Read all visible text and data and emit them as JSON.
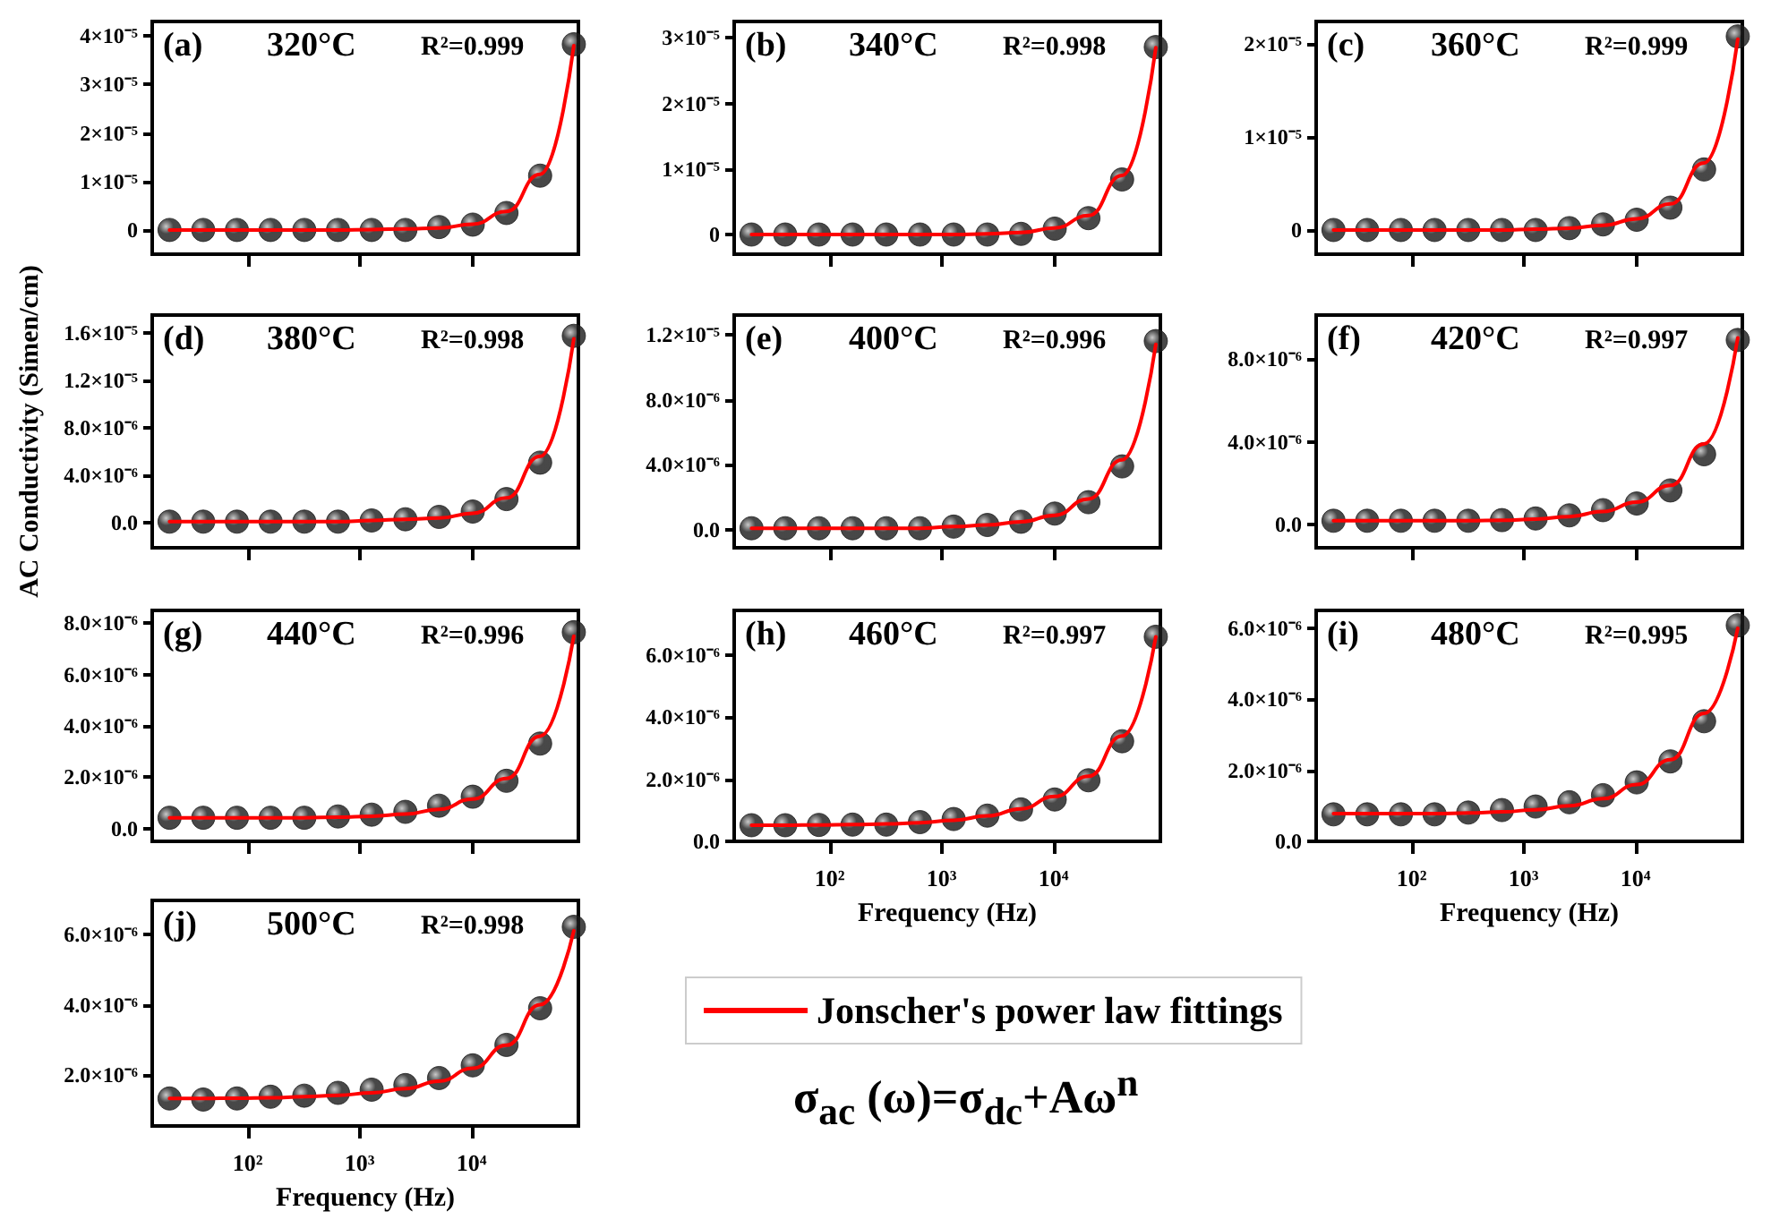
{
  "chart_data": [
    {
      "type": "scatter",
      "annotations": [
        "(a)",
        "320°C",
        "R²=0.999"
      ],
      "x": [
        20,
        40,
        80,
        160,
        320,
        640,
        1280,
        2560,
        5120,
        10240,
        20480,
        40960,
        81920
      ],
      "log": "x",
      "xlim": [
        14,
        90000
      ],
      "xticks": [
        {
          "value": 100,
          "label": null
        },
        {
          "value": 1000,
          "label": null
        },
        {
          "value": 10000,
          "label": null
        }
      ],
      "ylim": [
        -5e-06,
        4.3e-05
      ],
      "yticks": [
        {
          "value": 0,
          "label": "0"
        },
        {
          "value": 1e-05,
          "label": "1×10⁻⁵"
        },
        {
          "value": 2e-05,
          "label": "2×10⁻⁵"
        },
        {
          "value": 3e-05,
          "label": "3×10⁻⁵"
        },
        {
          "value": 4e-05,
          "label": "4×10⁻⁵"
        }
      ],
      "tick_labels": "y",
      "marker": "circle",
      "series": [
        {
          "color": "#1a1a1a",
          "values": [
            0,
            0,
            0,
            0,
            0,
            0,
            0,
            0,
            6e-07,
            1.1e-06,
            3.5e-06,
            1.12e-05,
            3.83e-05
          ]
        },
        {
          "type": "line",
          "marker": "none",
          "color": "#ff0000",
          "values": [
            0,
            0,
            0,
            0,
            0,
            0,
            1e-07,
            2e-07,
            4e-07,
            1.2e-06,
            3.8e-06,
            1.15e-05,
            3.8e-05
          ]
        }
      ]
    },
    {
      "type": "scatter",
      "annotations": [
        "(b)",
        "340°C",
        "R²=0.998"
      ],
      "x": [
        20,
        40,
        80,
        160,
        320,
        640,
        1280,
        2560,
        5120,
        10240,
        20480,
        40960,
        81920
      ],
      "log": "x",
      "xlim": [
        14,
        90000
      ],
      "xticks": [
        {
          "value": 100,
          "label": null
        },
        {
          "value": 1000,
          "label": null
        },
        {
          "value": 10000,
          "label": null
        }
      ],
      "ylim": [
        -3e-06,
        3.25e-05
      ],
      "yticks": [
        {
          "value": 0,
          "label": "0"
        },
        {
          "value": 1e-05,
          "label": "1×10⁻⁵"
        },
        {
          "value": 2e-05,
          "label": "2×10⁻⁵"
        },
        {
          "value": 3e-05,
          "label": "3×10⁻⁵"
        }
      ],
      "tick_labels": "y",
      "marker": "circle",
      "series": [
        {
          "color": "#1a1a1a",
          "values": [
            0,
            0,
            0,
            0,
            0,
            0,
            0,
            0,
            1e-07,
            9e-07,
            2.5e-06,
            8.4e-06,
            2.86e-05
          ]
        },
        {
          "type": "line",
          "marker": "none",
          "color": "#ff0000",
          "values": [
            0,
            0,
            0,
            0,
            0,
            0,
            0,
            1e-07,
            3e-07,
            1e-06,
            2.9e-06,
            9e-06,
            2.85e-05
          ]
        }
      ]
    },
    {
      "type": "scatter",
      "annotations": [
        "(c)",
        "360°C",
        "R²=0.999"
      ],
      "x": [
        20,
        40,
        80,
        160,
        320,
        640,
        1280,
        2560,
        5120,
        10240,
        20480,
        40960,
        81920
      ],
      "log": "x",
      "xlim": [
        14,
        90000
      ],
      "xticks": [
        {
          "value": 100,
          "label": null
        },
        {
          "value": 1000,
          "label": null
        },
        {
          "value": 10000,
          "label": null
        }
      ],
      "ylim": [
        -2.6e-06,
        2.24e-05
      ],
      "yticks": [
        {
          "value": 0,
          "label": "0"
        },
        {
          "value": 1e-05,
          "label": "1×10⁻⁵"
        },
        {
          "value": 2e-05,
          "label": "2×10⁻⁵"
        }
      ],
      "tick_labels": "y",
      "marker": "circle",
      "series": [
        {
          "color": "#1a1a1a",
          "values": [
            0,
            0,
            0,
            0,
            0,
            0,
            0,
            2e-07,
            6e-07,
            1.1e-06,
            2.4e-06,
            6.5e-06,
            2.08e-05
          ]
        },
        {
          "type": "line",
          "marker": "none",
          "color": "#ff0000",
          "values": [
            0,
            0,
            0,
            0,
            0,
            0,
            1e-07,
            2e-07,
            5e-07,
            1.2e-06,
            2.8e-06,
            7.2e-06,
            2.05e-05
          ]
        }
      ]
    },
    {
      "type": "scatter",
      "annotations": [
        "(d)",
        "380°C",
        "R²=0.998"
      ],
      "ylabel": "AC Conductivity (Simen/cm)",
      "x": [
        20,
        40,
        80,
        160,
        320,
        640,
        1280,
        2560,
        5120,
        10240,
        20480,
        40960,
        81920
      ],
      "log": "x",
      "xlim": [
        14,
        90000
      ],
      "xticks": [
        {
          "value": 100,
          "label": null
        },
        {
          "value": 1000,
          "label": null
        },
        {
          "value": 10000,
          "label": null
        }
      ],
      "ylim": [
        -2.1e-06,
        1.75e-05
      ],
      "yticks": [
        {
          "value": 0,
          "label": "0.0"
        },
        {
          "value": 4e-06,
          "label": "4.0×10⁻⁶"
        },
        {
          "value": 8e-06,
          "label": "8.0×10⁻⁶"
        },
        {
          "value": 1.2e-05,
          "label": "1.2×10⁻⁵"
        },
        {
          "value": 1.6e-05,
          "label": "1.6×10⁻⁵"
        }
      ],
      "tick_labels": "y",
      "marker": "circle",
      "series": [
        {
          "color": "#1a1a1a",
          "values": [
            1e-07,
            1e-07,
            1e-07,
            1e-07,
            1e-07,
            1e-07,
            2e-07,
            3e-07,
            5e-07,
            9.5e-07,
            2e-06,
            5.07e-06,
            1.575e-05
          ]
        },
        {
          "type": "line",
          "marker": "none",
          "color": "#ff0000",
          "values": [
            1e-07,
            1e-07,
            1e-07,
            1e-07,
            1e-07,
            1e-07,
            2e-07,
            3e-07,
            4e-07,
            8e-07,
            2.1e-06,
            5.6e-06,
            1.55e-05
          ]
        }
      ]
    },
    {
      "type": "scatter",
      "annotations": [
        "(e)",
        "400°C",
        "R²=0.996"
      ],
      "x": [
        20,
        40,
        80,
        160,
        320,
        640,
        1280,
        2560,
        5120,
        10240,
        20480,
        40960,
        81920
      ],
      "log": "x",
      "xlim": [
        14,
        90000
      ],
      "xticks": [
        {
          "value": 100,
          "label": null
        },
        {
          "value": 1000,
          "label": null
        },
        {
          "value": 10000,
          "label": null
        }
      ],
      "ylim": [
        -1.1e-06,
        1.32e-05
      ],
      "yticks": [
        {
          "value": 0,
          "label": "0.0"
        },
        {
          "value": 4e-06,
          "label": "4.0×10⁻⁶"
        },
        {
          "value": 8e-06,
          "label": "8.0×10⁻⁶"
        },
        {
          "value": 1.2e-05,
          "label": "1.2×10⁻⁵"
        }
      ],
      "tick_labels": "y",
      "marker": "circle",
      "series": [
        {
          "color": "#1a1a1a",
          "values": [
            1e-07,
            1e-07,
            1e-07,
            1e-07,
            1e-07,
            1e-07,
            2e-07,
            3e-07,
            5e-07,
            1e-06,
            1.7e-06,
            3.9e-06,
            1.16e-05
          ]
        },
        {
          "type": "line",
          "marker": "none",
          "color": "#ff0000",
          "values": [
            1e-07,
            1e-07,
            1e-07,
            1e-07,
            1e-07,
            1e-07,
            2e-07,
            3e-07,
            5e-07,
            9e-07,
            1.9e-06,
            4.3e-06,
            1.14e-05
          ]
        }
      ]
    },
    {
      "type": "scatter",
      "annotations": [
        "(f)",
        "420°C",
        "R²=0.997"
      ],
      "x": [
        20,
        40,
        80,
        160,
        320,
        640,
        1280,
        2560,
        5120,
        10240,
        20480,
        40960,
        81920
      ],
      "log": "x",
      "xlim": [
        14,
        90000
      ],
      "xticks": [
        {
          "value": 100,
          "label": null
        },
        {
          "value": 1000,
          "label": null
        },
        {
          "value": 10000,
          "label": null
        }
      ],
      "ylim": [
        -1.1e-06,
        1.01e-05
      ],
      "yticks": [
        {
          "value": 0,
          "label": "0.0"
        },
        {
          "value": 4e-06,
          "label": "4.0×10⁻⁶"
        },
        {
          "value": 8e-06,
          "label": "8.0×10⁻⁶"
        }
      ],
      "tick_labels": "y",
      "marker": "circle",
      "series": [
        {
          "color": "#1a1a1a",
          "values": [
            2e-07,
            2e-07,
            2e-07,
            2e-07,
            2e-07,
            2.3e-07,
            3.1e-07,
            4.6e-07,
            7.1e-07,
            1.03e-06,
            1.66e-06,
            3.4e-06,
            8.9e-06
          ]
        },
        {
          "type": "line",
          "marker": "none",
          "color": "#ff0000",
          "values": [
            2e-07,
            2e-07,
            2e-07,
            2e-07,
            2e-07,
            2.2e-07,
            2.8e-07,
            4e-07,
            6.5e-07,
            1.1e-06,
            1.9e-06,
            3.9e-06,
            9e-06
          ]
        }
      ]
    },
    {
      "type": "scatter",
      "annotations": [
        "(g)",
        "440°C",
        "R²=0.996"
      ],
      "x": [
        20,
        40,
        80,
        160,
        320,
        640,
        1280,
        2560,
        5120,
        10240,
        20480,
        40960,
        81920
      ],
      "log": "x",
      "xlim": [
        14,
        90000
      ],
      "xticks": [
        {
          "value": 100,
          "label": null
        },
        {
          "value": 1000,
          "label": null
        },
        {
          "value": 10000,
          "label": null
        }
      ],
      "ylim": [
        -5e-07,
        8.5e-06
      ],
      "yticks": [
        {
          "value": 0,
          "label": "0.0"
        },
        {
          "value": 2e-06,
          "label": "2.0×10⁻⁶"
        },
        {
          "value": 4e-06,
          "label": "4.0×10⁻⁶"
        },
        {
          "value": 6e-06,
          "label": "6.0×10⁻⁶"
        },
        {
          "value": 8e-06,
          "label": "8.0×10⁻⁶"
        }
      ],
      "tick_labels": "y",
      "marker": "circle",
      "series": [
        {
          "color": "#1a1a1a",
          "values": [
            4.2e-07,
            4.2e-07,
            4.2e-07,
            4.2e-07,
            4.2e-07,
            4.7e-07,
            5.4e-07,
            6.5e-07,
            8.9e-07,
            1.24e-06,
            1.86e-06,
            3.31e-06,
            7.65e-06
          ]
        },
        {
          "type": "line",
          "marker": "none",
          "color": "#ff0000",
          "values": [
            4.2e-07,
            4.2e-07,
            4.2e-07,
            4.2e-07,
            4.2e-07,
            4.4e-07,
            4.8e-07,
            5.6e-07,
            7.5e-07,
            1.15e-06,
            1.95e-06,
            3.6e-06,
            7.5e-06
          ]
        }
      ]
    },
    {
      "type": "scatter",
      "annotations": [
        "(h)",
        "460°C",
        "R²=0.997"
      ],
      "xlabel": "Frequency (Hz)",
      "x": [
        20,
        40,
        80,
        160,
        320,
        640,
        1280,
        2560,
        5120,
        10240,
        20480,
        40960,
        81920
      ],
      "log": "x",
      "xlim": [
        14,
        90000
      ],
      "xticks": [
        {
          "value": 100,
          "label": "10²"
        },
        {
          "value": 1000,
          "label": "10³"
        },
        {
          "value": 10000,
          "label": "10⁴"
        }
      ],
      "ylim": [
        0,
        7.45e-06
      ],
      "yticks": [
        {
          "value": 0,
          "label": "0.0"
        },
        {
          "value": 2e-06,
          "label": "2.0×10⁻⁶"
        },
        {
          "value": 4e-06,
          "label": "4.0×10⁻⁶"
        },
        {
          "value": 6e-06,
          "label": "6.0×10⁻⁶"
        }
      ],
      "marker": "circle",
      "series": [
        {
          "color": "#1a1a1a",
          "values": [
            5.2e-07,
            5.2e-07,
            5.3e-07,
            5.4e-07,
            5.4e-07,
            6.2e-07,
            7.2e-07,
            8.3e-07,
            1.03e-06,
            1.35e-06,
            1.97e-06,
            3.23e-06,
            6.6e-06
          ]
        },
        {
          "type": "line",
          "marker": "none",
          "color": "#ff0000",
          "values": [
            5.2e-07,
            5.2e-07,
            5.3e-07,
            5.4e-07,
            5.6e-07,
            6e-07,
            6.8e-07,
            8.2e-07,
            1.05e-06,
            1.45e-06,
            2.1e-06,
            3.4e-06,
            6.6e-06
          ]
        }
      ]
    },
    {
      "type": "scatter",
      "annotations": [
        "(i)",
        "480°C",
        "R²=0.995"
      ],
      "xlabel": "Frequency (Hz)",
      "x": [
        20,
        40,
        80,
        160,
        320,
        640,
        1280,
        2560,
        5120,
        10240,
        20480,
        40960,
        81920
      ],
      "log": "x",
      "xlim": [
        14,
        90000
      ],
      "xticks": [
        {
          "value": 100,
          "label": "10²"
        },
        {
          "value": 1000,
          "label": "10³"
        },
        {
          "value": 10000,
          "label": "10⁴"
        }
      ],
      "ylim": [
        0,
        6.5e-06
      ],
      "yticks": [
        {
          "value": 0,
          "label": "0.0"
        },
        {
          "value": 2e-06,
          "label": "2.0×10⁻⁶"
        },
        {
          "value": 4e-06,
          "label": "4.0×10⁻⁶"
        },
        {
          "value": 6e-06,
          "label": "6.0×10⁻⁶"
        }
      ],
      "marker": "circle",
      "series": [
        {
          "color": "#1a1a1a",
          "values": [
            7.6e-07,
            7.6e-07,
            7.6e-07,
            7.6e-07,
            8.1e-07,
            8.8e-07,
            9.8e-07,
            1.1e-06,
            1.3e-06,
            1.66e-06,
            2.25e-06,
            3.38e-06,
            6.08e-06
          ]
        },
        {
          "type": "line",
          "marker": "none",
          "color": "#ff0000",
          "values": [
            7.8e-07,
            7.8e-07,
            7.8e-07,
            7.8e-07,
            8e-07,
            8.3e-07,
            8.9e-07,
            1e-06,
            1.2e-06,
            1.6e-06,
            2.3e-06,
            3.6e-06,
            6e-06
          ]
        }
      ]
    },
    {
      "type": "scatter",
      "annotations": [
        "(j)",
        "500°C",
        "R²=0.998",
        "σ$_{ac}$ (ω)=σ$_{dc}$+Aω$^{n}$"
      ],
      "xlabel": "Frequency (Hz)",
      "x": [
        20,
        40,
        80,
        160,
        320,
        640,
        1280,
        2560,
        5120,
        10240,
        20480,
        40960,
        81920
      ],
      "log": "x",
      "xlim": [
        14,
        90000
      ],
      "xticks": [
        {
          "value": 100,
          "label": "10²"
        },
        {
          "value": 1000,
          "label": "10³"
        },
        {
          "value": 10000,
          "label": "10⁴"
        }
      ],
      "ylim": [
        5.6e-07,
        6.96e-06
      ],
      "yticks": [
        {
          "value": 2e-06,
          "label": "2.0×10⁻⁶"
        },
        {
          "value": 4e-06,
          "label": "4.0×10⁻⁶"
        },
        {
          "value": 6e-06,
          "label": "6.0×10⁻⁶"
        }
      ],
      "marker": "circle",
      "legend": "right",
      "series": [
        {
          "color": "#1a1a1a",
          "values": [
            1.34e-06,
            1.31e-06,
            1.34e-06,
            1.39e-06,
            1.42e-06,
            1.5e-06,
            1.59e-06,
            1.72e-06,
            1.92e-06,
            2.28e-06,
            2.86e-06,
            3.9e-06,
            6.21e-06
          ]
        },
        {
          "type": "line",
          "marker": "none",
          "name": "Jonscher's power law fittings",
          "color": "#ff0000",
          "values": [
            1.34e-06,
            1.34e-06,
            1.35e-06,
            1.36e-06,
            1.39e-06,
            1.43e-06,
            1.5e-06,
            1.62e-06,
            1.83e-06,
            2.2e-06,
            2.85e-06,
            4e-06,
            6.1e-06
          ]
        }
      ]
    }
  ]
}
